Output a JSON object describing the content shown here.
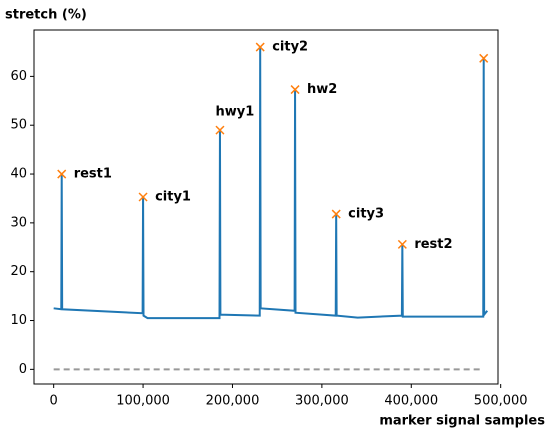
{
  "chart_data": {
    "type": "line",
    "ylabel": "stretch (%)",
    "xlabel": "marker signal samples",
    "xlim": [
      -22000,
      497000
    ],
    "ylim": [
      -3,
      69.5
    ],
    "xticks": [
      0,
      {
        "value": 100000,
        "label": "100,000"
      },
      {
        "value": 200000,
        "label": "200,000"
      },
      {
        "value": 300000,
        "label": "300,000"
      },
      {
        "value": 400000,
        "label": "400,000"
      },
      {
        "value": 500000,
        "label": "500,000"
      }
    ],
    "yticks": [
      0,
      10,
      20,
      30,
      40,
      50,
      60
    ],
    "series": [
      {
        "color": "#1f77b4",
        "style": "solid",
        "x": [
          0,
          8500,
          9000,
          9500,
          99500,
          100000,
          100500,
          105000,
          185500,
          186000,
          186500,
          230500,
          231000,
          231500,
          269500,
          270000,
          270500,
          315500,
          316000,
          316500,
          340000,
          389500,
          390000,
          390500,
          480500,
          481000,
          481500,
          485000
        ],
        "values": [
          12.5,
          12.3,
          40,
          12.3,
          11.5,
          35.3,
          11,
          10.5,
          10.5,
          49,
          11.2,
          11,
          66,
          12.5,
          12,
          57.3,
          11.6,
          11,
          31.8,
          11,
          10.6,
          11,
          25.6,
          10.8,
          10.8,
          63.7,
          11.2,
          12
        ]
      },
      {
        "color": "#999999",
        "style": "dashed",
        "x": [
          0,
          480000
        ],
        "values": [
          0,
          0
        ]
      }
    ],
    "peaks": {
      "color": "#ff7f0e",
      "x": [
        9000,
        100000,
        186000,
        231000,
        270000,
        316000,
        390000,
        481000
      ],
      "values": [
        40,
        35.3,
        49,
        66,
        57.3,
        31.8,
        25.6,
        63.7
      ],
      "labels": [
        "rest1",
        "city1",
        "hwy1",
        "city2",
        "hw2",
        "city3",
        "rest2",
        null
      ]
    }
  }
}
